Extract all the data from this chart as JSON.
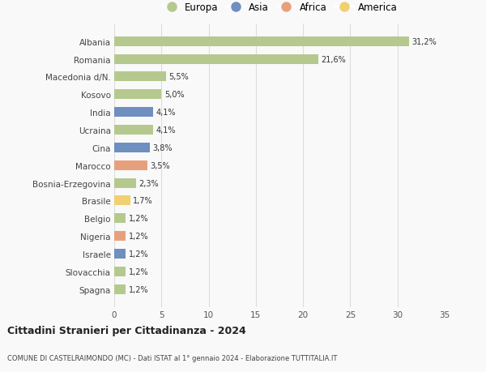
{
  "countries": [
    "Albania",
    "Romania",
    "Macedonia d/N.",
    "Kosovo",
    "India",
    "Ucraina",
    "Cina",
    "Marocco",
    "Bosnia-Erzegovina",
    "Brasile",
    "Belgio",
    "Nigeria",
    "Israele",
    "Slovacchia",
    "Spagna"
  ],
  "values": [
    31.2,
    21.6,
    5.5,
    5.0,
    4.1,
    4.1,
    3.8,
    3.5,
    2.3,
    1.7,
    1.2,
    1.2,
    1.2,
    1.2,
    1.2
  ],
  "labels": [
    "31,2%",
    "21,6%",
    "5,5%",
    "5,0%",
    "4,1%",
    "4,1%",
    "3,8%",
    "3,5%",
    "2,3%",
    "1,7%",
    "1,2%",
    "1,2%",
    "1,2%",
    "1,2%",
    "1,2%"
  ],
  "continents": [
    "Europa",
    "Europa",
    "Europa",
    "Europa",
    "Asia",
    "Europa",
    "Asia",
    "Africa",
    "Europa",
    "America",
    "Europa",
    "Africa",
    "Asia",
    "Europa",
    "Europa"
  ],
  "colors": {
    "Europa": "#b5c98e",
    "Asia": "#6e8fbf",
    "Africa": "#e8a07c",
    "America": "#f0d070"
  },
  "legend_order": [
    "Europa",
    "Asia",
    "Africa",
    "America"
  ],
  "xlim": [
    0,
    35
  ],
  "xticks": [
    0,
    5,
    10,
    15,
    20,
    25,
    30,
    35
  ],
  "title": "Cittadini Stranieri per Cittadinanza - 2024",
  "subtitle": "COMUNE DI CASTELRAIMONDO (MC) - Dati ISTAT al 1° gennaio 2024 - Elaborazione TUTTITALIA.IT",
  "background_color": "#f9f9f9",
  "bar_height": 0.55,
  "grid_color": "#dddddd"
}
